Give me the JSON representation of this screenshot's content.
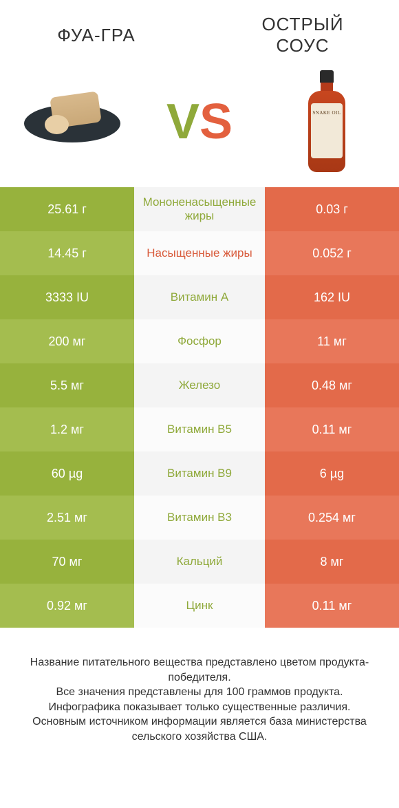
{
  "titles": {
    "left": "ФУА-ГРА",
    "right": "ОСТРЫЙ СОУС"
  },
  "vs": {
    "v": "V",
    "s": "S"
  },
  "bottle_label": "SNAKE OIL",
  "colors": {
    "left_bg_a": "#97b23d",
    "left_bg_b": "#a4bd4f",
    "right_bg_a": "#e36a4a",
    "right_bg_b": "#e8775a",
    "mid_bg_a": "#f4f4f4",
    "mid_bg_b": "#fbfbfb",
    "mid_text_green": "#8fa93a",
    "mid_text_orange": "#d85a3a"
  },
  "rows": [
    {
      "left": "25.61 г",
      "mid": "Мононенасыщенные жиры",
      "right": "0.03 г",
      "winner": "left"
    },
    {
      "left": "14.45 г",
      "mid": "Насыщенные жиры",
      "right": "0.052 г",
      "winner": "right"
    },
    {
      "left": "3333 IU",
      "mid": "Витамин A",
      "right": "162 IU",
      "winner": "left"
    },
    {
      "left": "200 мг",
      "mid": "Фосфор",
      "right": "11 мг",
      "winner": "left"
    },
    {
      "left": "5.5 мг",
      "mid": "Железо",
      "right": "0.48 мг",
      "winner": "left"
    },
    {
      "left": "1.2 мг",
      "mid": "Витамин B5",
      "right": "0.11 мг",
      "winner": "left"
    },
    {
      "left": "60 µg",
      "mid": "Витамин B9",
      "right": "6 µg",
      "winner": "left"
    },
    {
      "left": "2.51 мг",
      "mid": "Витамин B3",
      "right": "0.254 мг",
      "winner": "left"
    },
    {
      "left": "70 мг",
      "mid": "Кальций",
      "right": "8 мг",
      "winner": "left"
    },
    {
      "left": "0.92 мг",
      "mid": "Цинк",
      "right": "0.11 мг",
      "winner": "left"
    }
  ],
  "footer_lines": [
    "Название питательного вещества представлено цветом продукта-победителя.",
    "Все значения представлены для 100 граммов продукта.",
    "Инфографика показывает только существенные различия.",
    "Основным источником информации является база министерства сельского хозяйства США."
  ]
}
